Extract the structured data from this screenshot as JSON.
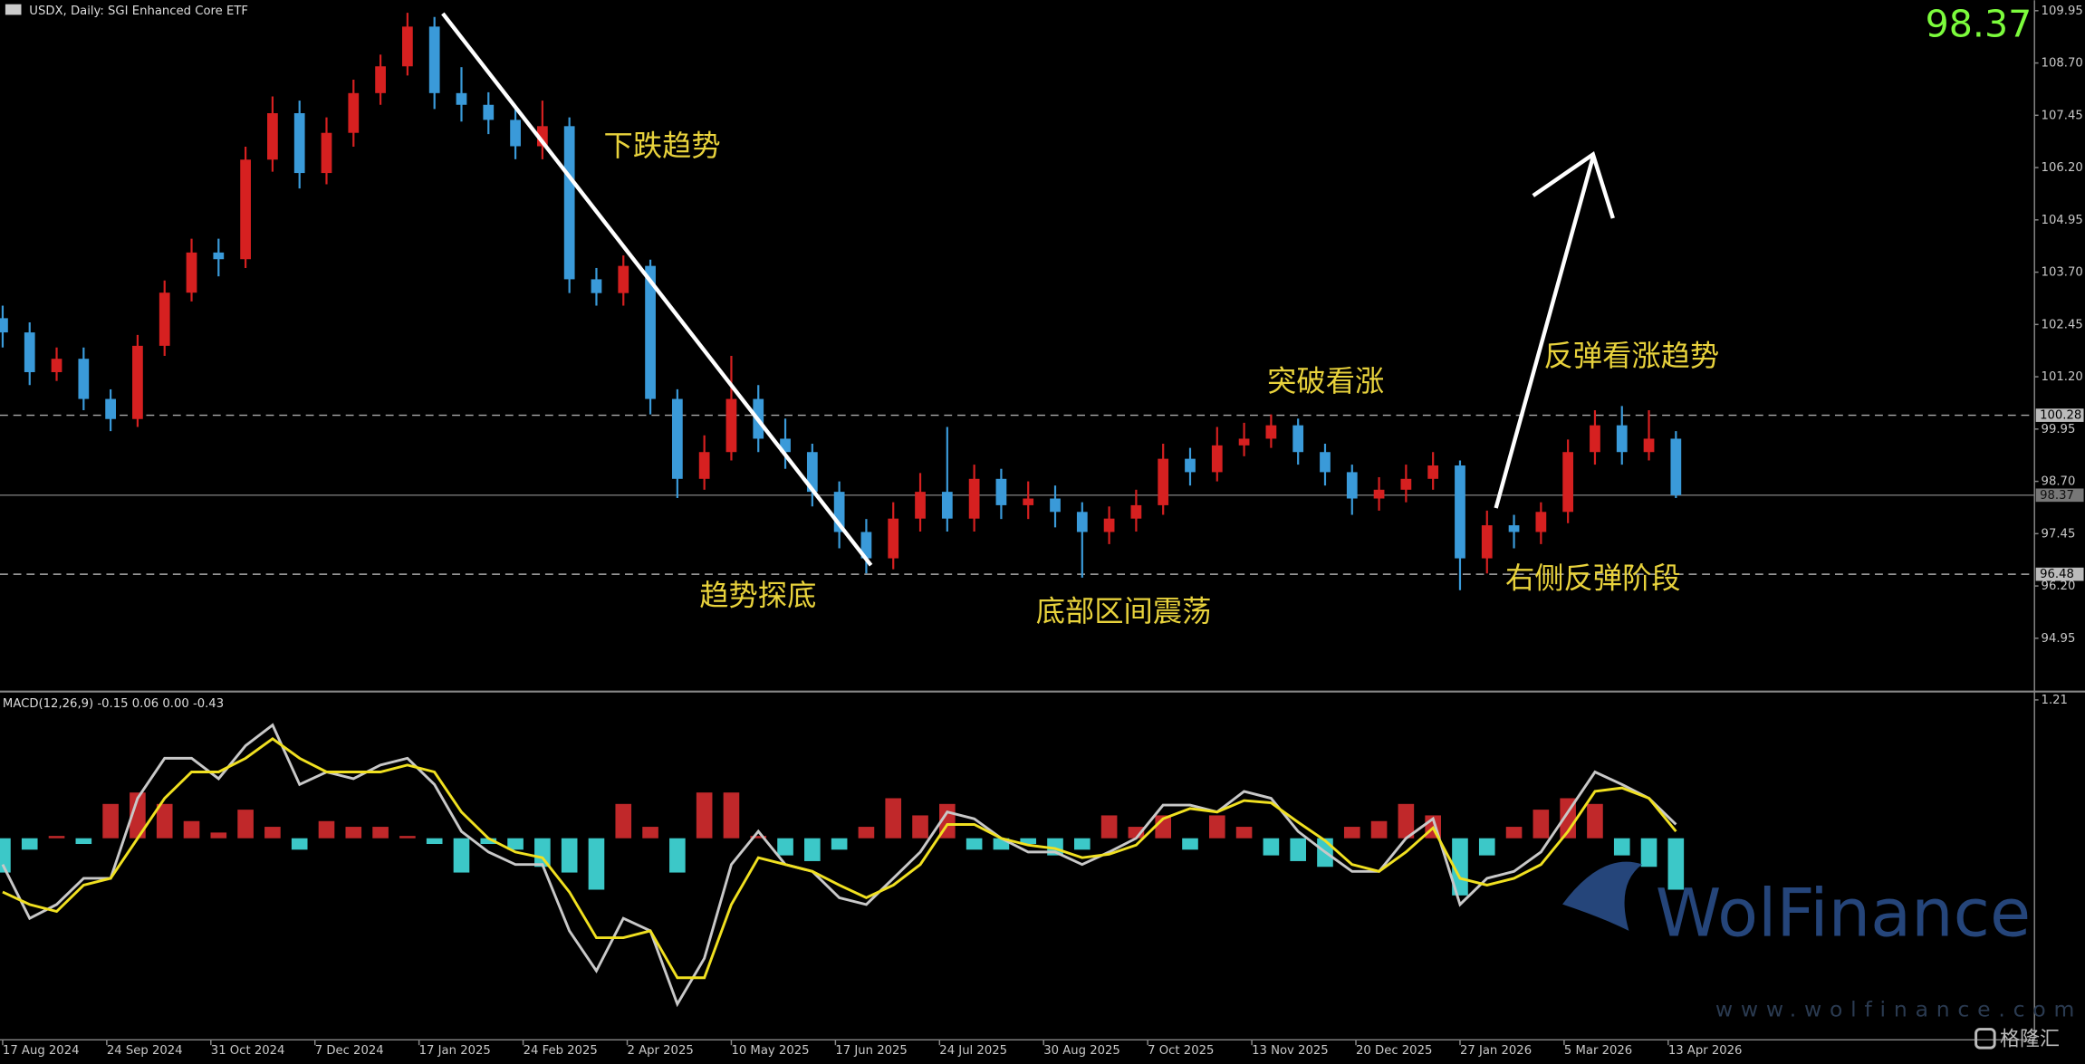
{
  "chart_data": [
    {
      "type": "candlestick",
      "title": "USDX, Daily: SGI Enhanced Core ETF",
      "current_price": 98.37,
      "levels": [
        100.28,
        96.48
      ],
      "up_color": "#d62020",
      "down_color": "#3a9ad9",
      "annotations": [
        "下跌趋势",
        "趋势探底",
        "底部区间震荡",
        "突破看涨",
        "反弹看涨趋势",
        "右侧反弹阶段"
      ],
      "xlim": [
        0,
        527
      ],
      "ylim": [
        93.74,
        110.2
      ],
      "xticks": [
        {
          "value": 0,
          "label": "17 Aug 2024"
        },
        {
          "value": 27,
          "label": "24 Sep 2024"
        },
        {
          "value": 54,
          "label": "31 Oct 2024"
        },
        {
          "value": 81,
          "label": "7 Dec 2024"
        },
        {
          "value": 108,
          "label": "17 Jan 2025"
        },
        {
          "value": 135,
          "label": "24 Feb 2025"
        },
        {
          "value": 162,
          "label": "2 Apr 2025"
        },
        {
          "value": 189,
          "label": "10 May 2025"
        },
        {
          "value": 216,
          "label": "17 Jun 2025"
        },
        {
          "value": 243,
          "label": "24 Jul 2025"
        },
        {
          "value": 270,
          "label": "30 Aug 2025"
        },
        {
          "value": 297,
          "label": "7 Oct 2025"
        },
        {
          "value": 324,
          "label": "13 Nov 2025"
        },
        {
          "value": 351,
          "label": "20 Dec 2025"
        },
        {
          "value": 378,
          "label": "27 Jan 2026"
        },
        {
          "value": 405,
          "label": "5 Mar 2026"
        },
        {
          "value": 432,
          "label": "13 Apr 2026"
        }
      ],
      "yticks": [
        109.95,
        {
          "value": 108.7,
          "label": "108.70"
        },
        107.45,
        {
          "value": 106.2,
          "label": "106.20"
        },
        104.95,
        {
          "value": 103.7,
          "label": "103.70"
        },
        102.45,
        {
          "value": 101.2,
          "label": "101.20"
        },
        99.95,
        {
          "value": 98.7,
          "label": "98.70"
        },
        97.45,
        {
          "value": 96.2,
          "label": "96.20"
        },
        94.95
      ],
      "x": [
        0,
        7,
        14,
        21,
        28,
        35,
        42,
        49,
        56,
        63,
        70,
        77,
        84,
        91,
        98,
        105,
        112,
        119,
        126,
        133,
        140,
        147,
        154,
        161,
        168,
        175,
        182,
        189,
        196,
        203,
        210,
        217,
        224,
        231,
        238,
        245,
        252,
        259,
        266,
        273,
        280,
        287,
        294,
        301,
        308,
        315,
        322,
        329,
        336,
        343,
        350,
        357,
        364,
        371,
        378,
        385,
        392,
        399,
        406,
        413,
        420,
        427,
        434
      ],
      "open": [
        102.6,
        102.26,
        101.31,
        101.63,
        100.67,
        100.19,
        101.94,
        103.21,
        104.17,
        104.01,
        106.39,
        107.5,
        106.07,
        107.03,
        107.98,
        108.62,
        109.57,
        107.98,
        107.7,
        107.34,
        106.71,
        107.19,
        103.53,
        103.2,
        103.85,
        100.67,
        98.76,
        99.4,
        100.67,
        99.72,
        99.4,
        98.45,
        97.49,
        96.86,
        97.81,
        98.45,
        97.81,
        98.76,
        98.13,
        98.29,
        97.97,
        97.49,
        97.81,
        98.13,
        99.24,
        98.92,
        99.56,
        99.72,
        100.04,
        99.4,
        98.92,
        98.29,
        98.5,
        98.76,
        99.08,
        96.86,
        97.65,
        97.49,
        97.97,
        99.4,
        100.04,
        99.4,
        99.72
      ],
      "high": [
        102.9,
        102.5,
        101.9,
        101.9,
        100.9,
        102.2,
        103.5,
        104.5,
        104.5,
        106.7,
        107.9,
        107.8,
        107.4,
        108.3,
        108.9,
        109.9,
        109.8,
        108.6,
        108.0,
        107.6,
        107.8,
        107.4,
        103.8,
        104.1,
        104.0,
        100.9,
        99.8,
        101.7,
        101.0,
        100.2,
        99.6,
        98.7,
        97.8,
        98.2,
        98.9,
        100.0,
        99.1,
        99.0,
        98.7,
        98.6,
        98.2,
        98.1,
        98.5,
        99.6,
        99.5,
        100.0,
        100.1,
        100.3,
        100.2,
        99.6,
        99.1,
        98.8,
        99.1,
        99.4,
        99.2,
        98.0,
        97.9,
        98.2,
        99.7,
        100.4,
        100.5,
        100.4,
        99.9
      ],
      "low": [
        101.9,
        101.0,
        101.1,
        100.4,
        99.9,
        100.0,
        101.7,
        103.0,
        103.6,
        103.8,
        106.1,
        105.7,
        105.8,
        106.7,
        107.7,
        108.4,
        107.6,
        107.3,
        107.0,
        106.4,
        106.4,
        103.2,
        102.9,
        102.9,
        100.3,
        98.3,
        98.5,
        99.2,
        99.4,
        99.0,
        98.1,
        97.1,
        96.5,
        96.6,
        97.5,
        97.5,
        97.5,
        97.8,
        97.8,
        97.6,
        96.4,
        97.2,
        97.5,
        97.9,
        98.6,
        98.7,
        99.3,
        99.5,
        99.1,
        98.6,
        97.9,
        98.0,
        98.2,
        98.5,
        96.1,
        96.5,
        97.1,
        97.2,
        97.7,
        99.1,
        99.1,
        99.2,
        98.3
      ],
      "close": [
        102.26,
        101.31,
        101.63,
        100.67,
        100.19,
        101.94,
        103.21,
        104.17,
        104.01,
        106.39,
        107.5,
        106.07,
        107.03,
        107.98,
        108.62,
        109.57,
        107.98,
        107.7,
        107.34,
        106.71,
        107.19,
        103.53,
        103.2,
        103.85,
        100.67,
        98.76,
        99.4,
        100.67,
        99.72,
        99.4,
        98.45,
        97.49,
        96.86,
        97.81,
        98.45,
        97.81,
        98.76,
        98.13,
        98.29,
        97.97,
        97.49,
        97.81,
        98.13,
        99.24,
        98.92,
        99.56,
        99.72,
        100.04,
        99.4,
        98.92,
        98.29,
        98.5,
        98.76,
        99.08,
        96.86,
        97.65,
        97.49,
        97.97,
        99.4,
        100.04,
        99.4,
        99.72,
        98.37
      ]
    },
    {
      "type": "macd",
      "title": "MACD(12,26,9) -0.15 0.06 0.00 -0.43",
      "xlim": [
        0,
        527
      ],
      "ylim": [
        -1.74,
        1.26
      ],
      "yticks": [
        1.21
      ],
      "x": [
        0,
        7,
        14,
        21,
        28,
        35,
        42,
        49,
        56,
        63,
        70,
        77,
        84,
        91,
        98,
        105,
        112,
        119,
        126,
        133,
        140,
        147,
        154,
        161,
        168,
        175,
        182,
        189,
        196,
        203,
        210,
        217,
        224,
        231,
        238,
        245,
        252,
        259,
        266,
        273,
        280,
        287,
        294,
        301,
        308,
        315,
        322,
        329,
        336,
        343,
        350,
        357,
        364,
        371,
        378,
        385,
        392,
        399,
        406,
        413,
        420,
        427,
        434
      ],
      "series": [
        {
          "name": "histogram",
          "color": "#c0282a",
          "negative_color": "#3cc8c8",
          "values": [
            -0.3,
            -0.1,
            0.02,
            -0.05,
            0.3,
            0.4,
            0.3,
            0.15,
            0.05,
            0.25,
            0.1,
            -0.1,
            0.15,
            0.1,
            0.1,
            0.02,
            -0.05,
            -0.3,
            -0.05,
            -0.1,
            -0.25,
            -0.3,
            -0.45,
            0.3,
            0.1,
            -0.3,
            0.4,
            0.4,
            0.02,
            -0.15,
            -0.2,
            -0.1,
            0.1,
            0.35,
            0.2,
            0.3,
            -0.1,
            -0.1,
            -0.05,
            -0.15,
            -0.1,
            0.2,
            0.1,
            0.2,
            -0.1,
            0.2,
            0.1,
            -0.15,
            -0.2,
            -0.25,
            0.1,
            0.15,
            0.3,
            0.2,
            -0.5,
            -0.15,
            0.1,
            0.25,
            0.35,
            0.3,
            -0.15,
            -0.25,
            -0.45
          ]
        },
        {
          "name": "macd",
          "color": "#c8c8c8",
          "values": [
            -0.23,
            -0.7,
            -0.58,
            -0.35,
            -0.35,
            0.35,
            0.7,
            0.7,
            0.52,
            0.81,
            0.99,
            0.47,
            0.58,
            0.52,
            0.64,
            0.7,
            0.47,
            0.06,
            -0.12,
            -0.23,
            -0.23,
            -0.81,
            -1.16,
            -0.7,
            -0.81,
            -1.45,
            -1.05,
            -0.23,
            0.06,
            -0.23,
            -0.29,
            -0.52,
            -0.58,
            -0.35,
            -0.12,
            0.23,
            0.17,
            0,
            -0.12,
            -0.12,
            -0.23,
            -0.12,
            0,
            0.29,
            0.29,
            0.23,
            0.41,
            0.35,
            0.06,
            -0.12,
            -0.29,
            -0.29,
            0,
            0.17,
            -0.58,
            -0.35,
            -0.29,
            -0.12,
            0.23,
            0.58,
            0.47,
            0.35,
            0.12
          ]
        },
        {
          "name": "signal",
          "color": "#f0e020",
          "values": [
            -0.47,
            -0.58,
            -0.64,
            -0.41,
            -0.35,
            0,
            0.35,
            0.58,
            0.58,
            0.7,
            0.87,
            0.7,
            0.58,
            0.58,
            0.58,
            0.64,
            0.58,
            0.23,
            0,
            -0.12,
            -0.17,
            -0.47,
            -0.87,
            -0.87,
            -0.81,
            -1.22,
            -1.22,
            -0.58,
            -0.17,
            -0.23,
            -0.29,
            -0.41,
            -0.52,
            -0.41,
            -0.23,
            0.12,
            0.12,
            0,
            -0.06,
            -0.09,
            -0.17,
            -0.14,
            -0.06,
            0.17,
            0.26,
            0.23,
            0.33,
            0.31,
            0.14,
            -0.02,
            -0.23,
            -0.29,
            -0.12,
            0.09,
            -0.35,
            -0.41,
            -0.35,
            -0.23,
            0.06,
            0.41,
            0.44,
            0.35,
            0.06
          ]
        }
      ]
    }
  ],
  "watermark": {
    "brand": "WolFinance",
    "url": "www.wolfinance.com",
    "logo": "格隆汇"
  }
}
